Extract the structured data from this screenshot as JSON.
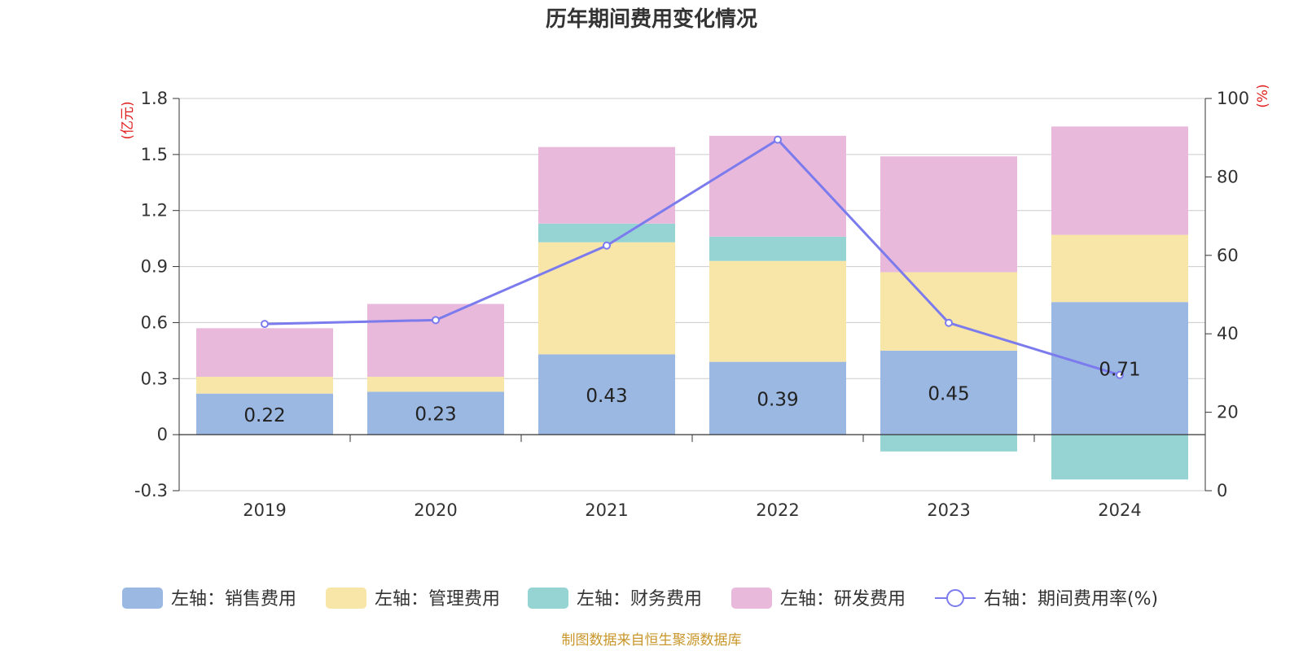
{
  "chart_data": {
    "type": "bar",
    "title": "历年期间费用变化情况",
    "categories": [
      "2019",
      "2020",
      "2021",
      "2022",
      "2023",
      "2024"
    ],
    "left_axis": {
      "unit_label": "(亿元)",
      "ylim": [
        -0.3,
        1.8
      ],
      "ticks": [
        "1.8",
        "1.5",
        "1.2",
        "0.9",
        "0.6",
        "0.3",
        "0",
        "-0.3"
      ],
      "tick_values": [
        1.8,
        1.5,
        1.2,
        0.9,
        0.6,
        0.3,
        0,
        -0.3
      ]
    },
    "right_axis": {
      "unit_label": "(%)",
      "ylim": [
        0,
        100
      ],
      "ticks": [
        "100",
        "80",
        "60",
        "40",
        "20",
        "0"
      ],
      "tick_values": [
        100,
        80,
        60,
        40,
        20,
        0
      ]
    },
    "series": [
      {
        "name": "左轴：销售费用",
        "type": "bar",
        "axis": "left",
        "color": "#9BB8E2",
        "values": [
          0.22,
          0.23,
          0.43,
          0.39,
          0.45,
          0.71
        ],
        "labels": [
          "0.22",
          "0.23",
          "0.43",
          "0.39",
          "0.45",
          "0.71"
        ]
      },
      {
        "name": "左轴：管理费用",
        "type": "bar",
        "axis": "left",
        "color": "#F8E6A8",
        "values": [
          0.09,
          0.08,
          0.6,
          0.54,
          0.42,
          0.36
        ]
      },
      {
        "name": "左轴：财务费用",
        "type": "bar",
        "axis": "left",
        "color": "#96D4D4",
        "values": [
          0.0,
          0.0,
          0.1,
          0.13,
          -0.09,
          -0.24
        ]
      },
      {
        "name": "左轴：研发费用",
        "type": "bar",
        "axis": "left",
        "color": "#E8B9DA",
        "values": [
          0.26,
          0.39,
          0.41,
          0.54,
          0.62,
          0.58
        ]
      },
      {
        "name": "右轴：期间费用率(%)",
        "type": "line",
        "axis": "right",
        "color": "#7B7BEE",
        "values": [
          42.5,
          43.5,
          62.5,
          89.5,
          42.8,
          29.5
        ]
      }
    ],
    "legend_position": "bottom",
    "grid": true
  },
  "footer": {
    "source": "制图数据来自恒生聚源数据库"
  }
}
